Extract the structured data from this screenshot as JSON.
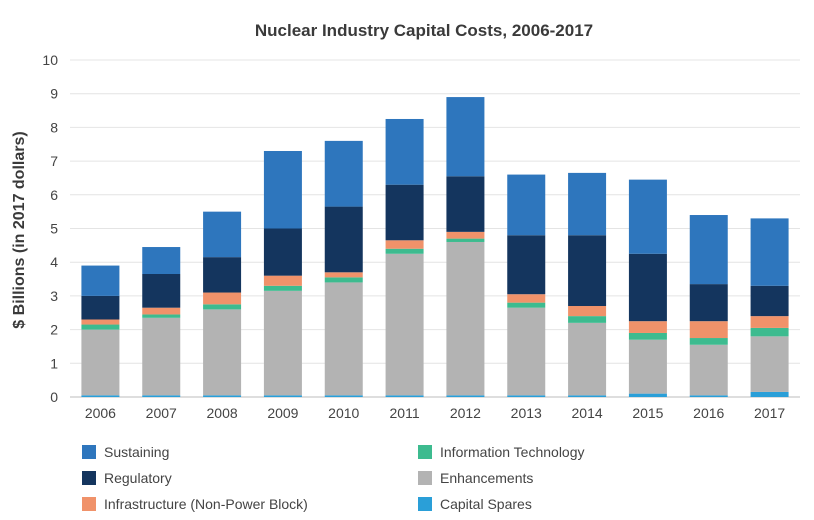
{
  "chart_data": {
    "type": "bar",
    "stacked": true,
    "title": "Nuclear Industry Capital Costs, 2006-2017",
    "xlabel": "",
    "ylabel": "$ Billions (in 2017 dollars)",
    "ylim": [
      0,
      10
    ],
    "yticks": [
      "0",
      "1",
      "2",
      "3",
      "4",
      "5",
      "6",
      "7",
      "8",
      "9",
      "10"
    ],
    "grid": true,
    "legend_position": "bottom",
    "categories": [
      "2006",
      "2007",
      "2008",
      "2009",
      "2010",
      "2011",
      "2012",
      "2013",
      "2014",
      "2015",
      "2016",
      "2017"
    ],
    "series": [
      {
        "name": "Capital Spares",
        "color": "#2a9fd8",
        "values": [
          0.05,
          0.05,
          0.05,
          0.05,
          0.05,
          0.05,
          0.05,
          0.05,
          0.05,
          0.1,
          0.05,
          0.15
        ]
      },
      {
        "name": "Enhancements",
        "color": "#b3b3b3",
        "values": [
          1.95,
          2.3,
          2.55,
          3.1,
          3.35,
          4.2,
          4.55,
          2.6,
          2.15,
          1.6,
          1.5,
          1.65
        ]
      },
      {
        "name": "Information Technology",
        "color": "#3dbb8f",
        "values": [
          0.15,
          0.1,
          0.15,
          0.15,
          0.15,
          0.15,
          0.1,
          0.15,
          0.2,
          0.2,
          0.2,
          0.25
        ]
      },
      {
        "name": "Infrastructure (Non-Power Block)",
        "color": "#f0926a",
        "values": [
          0.15,
          0.2,
          0.35,
          0.3,
          0.15,
          0.25,
          0.2,
          0.25,
          0.3,
          0.35,
          0.5,
          0.35
        ]
      },
      {
        "name": "Regulatory",
        "color": "#14355e",
        "values": [
          0.7,
          1.0,
          1.05,
          1.4,
          1.95,
          1.65,
          1.65,
          1.75,
          2.1,
          2.0,
          1.1,
          0.9
        ]
      },
      {
        "name": "Sustaining",
        "color": "#2e76bd",
        "values": [
          0.9,
          0.8,
          1.35,
          2.3,
          1.95,
          1.95,
          2.35,
          1.8,
          1.85,
          2.2,
          2.05,
          2.0
        ]
      }
    ]
  },
  "legend": [
    {
      "label": "Sustaining",
      "color": "#2e76bd"
    },
    {
      "label": "Information Technology",
      "color": "#3dbb8f"
    },
    {
      "label": "Regulatory",
      "color": "#14355e"
    },
    {
      "label": "Enhancements",
      "color": "#b3b3b3"
    },
    {
      "label": "Infrastructure (Non-Power Block)",
      "color": "#f0926a"
    },
    {
      "label": "Capital Spares",
      "color": "#2a9fd8"
    }
  ]
}
